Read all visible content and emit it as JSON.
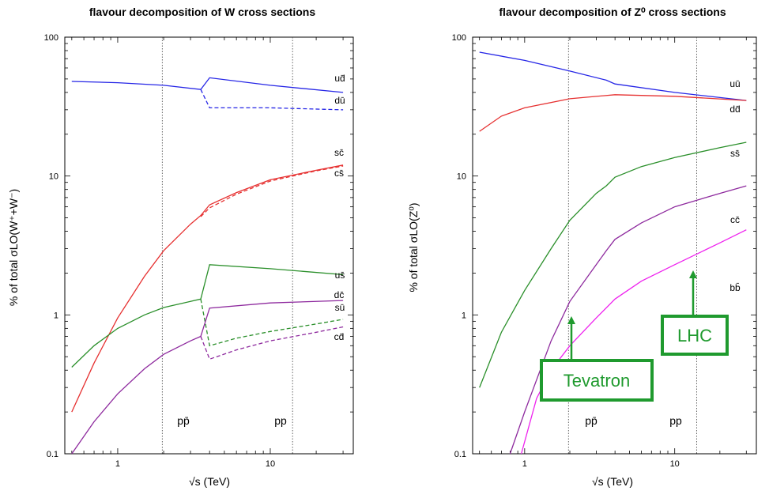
{
  "chart_data": [
    {
      "type": "line",
      "title": "flavour decomposition of W cross sections",
      "xlabel": "√s (TeV)",
      "ylabel": "% of total σLO(W⁺+W⁻)",
      "x_scale": "log",
      "y_scale": "log",
      "xlim": [
        0.45,
        35
      ],
      "ylim": [
        0.1,
        100
      ],
      "x_ticks": [
        {
          "value": 1,
          "label": "1"
        },
        {
          "value": 10,
          "label": "10"
        }
      ],
      "y_ticks": [
        {
          "value": 0.1,
          "label": "0.1"
        },
        {
          "value": 1,
          "label": "1"
        },
        {
          "value": 10,
          "label": "10"
        },
        {
          "value": 100,
          "label": "100"
        }
      ],
      "vlines": [
        {
          "x": 1.96,
          "label": "pp̄"
        },
        {
          "x": 14,
          "label": "pp"
        }
      ],
      "series": [
        {
          "name": "ud̄",
          "color": "#2626e6",
          "dash": false,
          "points": [
            [
              0.5,
              48
            ],
            [
              1,
              47
            ],
            [
              2,
              45
            ],
            [
              3.5,
              42
            ],
            [
              4,
              51
            ],
            [
              10,
              45
            ],
            [
              30,
              40
            ]
          ]
        },
        {
          "name": "dū",
          "color": "#2626e6",
          "dash": true,
          "points": [
            [
              3.5,
              42
            ],
            [
              4,
              31
            ],
            [
              10,
              31
            ],
            [
              30,
              30
            ]
          ]
        },
        {
          "name": "sc̄",
          "color": "#e63030",
          "dash": false,
          "points": [
            [
              0.5,
              0.2
            ],
            [
              0.7,
              0.45
            ],
            [
              1,
              0.95
            ],
            [
              1.5,
              1.9
            ],
            [
              2,
              2.9
            ],
            [
              3,
              4.5
            ],
            [
              3.5,
              5.2
            ],
            [
              4,
              6.2
            ],
            [
              6,
              7.6
            ],
            [
              10,
              9.4
            ],
            [
              20,
              11
            ],
            [
              30,
              12
            ]
          ]
        },
        {
          "name": "cs̄",
          "color": "#e63030",
          "dash": true,
          "points": [
            [
              3.5,
              5.1
            ],
            [
              4,
              5.9
            ],
            [
              6,
              7.4
            ],
            [
              10,
              9.2
            ],
            [
              20,
              10.9
            ],
            [
              30,
              11.8
            ]
          ]
        },
        {
          "name": "us̄",
          "color": "#2a8f2a",
          "dash": false,
          "points": [
            [
              0.5,
              0.42
            ],
            [
              0.7,
              0.6
            ],
            [
              1,
              0.8
            ],
            [
              1.5,
              1.0
            ],
            [
              2,
              1.13
            ],
            [
              3,
              1.25
            ],
            [
              3.5,
              1.3
            ],
            [
              4,
              2.3
            ],
            [
              10,
              2.15
            ],
            [
              30,
              1.95
            ]
          ]
        },
        {
          "name": "dc̄",
          "color": "#2a8f2a",
          "dash": true,
          "points": [
            [
              3.5,
              1.3
            ],
            [
              4,
              0.6
            ],
            [
              6,
              0.68
            ],
            [
              10,
              0.76
            ],
            [
              20,
              0.86
            ],
            [
              30,
              0.93
            ]
          ]
        },
        {
          "name": "sū",
          "color": "#8e2a9e",
          "dash": false,
          "points": [
            [
              0.5,
              0.1
            ],
            [
              0.7,
              0.17
            ],
            [
              1,
              0.27
            ],
            [
              1.5,
              0.41
            ],
            [
              2,
              0.52
            ],
            [
              3,
              0.65
            ],
            [
              3.5,
              0.7
            ],
            [
              4,
              1.12
            ],
            [
              10,
              1.22
            ],
            [
              30,
              1.27
            ]
          ]
        },
        {
          "name": "cd̄",
          "color": "#8e2a9e",
          "dash": true,
          "points": [
            [
              3.5,
              0.7
            ],
            [
              4,
              0.48
            ],
            [
              6,
              0.56
            ],
            [
              10,
              0.65
            ],
            [
              20,
              0.75
            ],
            [
              30,
              0.82
            ]
          ]
        }
      ]
    },
    {
      "type": "line",
      "title": "flavour decomposition of Z⁰ cross sections",
      "xlabel": "√s (TeV)",
      "ylabel": "% of total σLO(Z⁰)",
      "x_scale": "log",
      "y_scale": "log",
      "xlim": [
        0.45,
        35
      ],
      "ylim": [
        0.1,
        100
      ],
      "x_ticks": [
        {
          "value": 1,
          "label": "1"
        },
        {
          "value": 10,
          "label": "10"
        }
      ],
      "y_ticks": [
        {
          "value": 0.1,
          "label": "0.1"
        },
        {
          "value": 1,
          "label": "1"
        },
        {
          "value": 10,
          "label": "10"
        },
        {
          "value": 100,
          "label": "100"
        }
      ],
      "vlines": [
        {
          "x": 1.96,
          "label": "pp̄"
        },
        {
          "x": 14,
          "label": "pp"
        }
      ],
      "annotations": [
        {
          "label": "Tevatron",
          "x": 1.96
        },
        {
          "label": "LHC",
          "x": 14
        }
      ],
      "series": [
        {
          "name": "uū",
          "color": "#2626e6",
          "dash": false,
          "points": [
            [
              0.5,
              78
            ],
            [
              1,
              68
            ],
            [
              2,
              57
            ],
            [
              3.5,
              49
            ],
            [
              4,
              46
            ],
            [
              10,
              40
            ],
            [
              30,
              35
            ]
          ]
        },
        {
          "name": "dd̄",
          "color": "#e63030",
          "dash": false,
          "points": [
            [
              0.5,
              21
            ],
            [
              0.7,
              27
            ],
            [
              1,
              31
            ],
            [
              2,
              36
            ],
            [
              4,
              38.5
            ],
            [
              10,
              37.5
            ],
            [
              30,
              35
            ]
          ]
        },
        {
          "name": "ss̄",
          "color": "#2a8f2a",
          "dash": false,
          "points": [
            [
              0.5,
              0.3
            ],
            [
              0.7,
              0.75
            ],
            [
              1,
              1.5
            ],
            [
              1.5,
              3.0
            ],
            [
              2,
              4.8
            ],
            [
              3,
              7.5
            ],
            [
              3.5,
              8.5
            ],
            [
              4,
              9.8
            ],
            [
              6,
              11.7
            ],
            [
              10,
              13.6
            ],
            [
              20,
              16
            ],
            [
              30,
              17.5
            ]
          ]
        },
        {
          "name": "cc̄",
          "color": "#8e2a9e",
          "dash": false,
          "points": [
            [
              0.8,
              0.1
            ],
            [
              1,
              0.2
            ],
            [
              1.5,
              0.65
            ],
            [
              2,
              1.25
            ],
            [
              3,
              2.3
            ],
            [
              3.5,
              2.9
            ],
            [
              4,
              3.5
            ],
            [
              6,
              4.6
            ],
            [
              10,
              6.0
            ],
            [
              20,
              7.5
            ],
            [
              30,
              8.5
            ]
          ]
        },
        {
          "name": "bb̄",
          "color": "#ee22ee",
          "dash": false,
          "points": [
            [
              0.95,
              0.1
            ],
            [
              1.2,
              0.25
            ],
            [
              1.5,
              0.4
            ],
            [
              2,
              0.6
            ],
            [
              3,
              0.95
            ],
            [
              4,
              1.3
            ],
            [
              6,
              1.75
            ],
            [
              10,
              2.3
            ],
            [
              20,
              3.3
            ],
            [
              30,
              4.1
            ]
          ]
        }
      ]
    }
  ]
}
